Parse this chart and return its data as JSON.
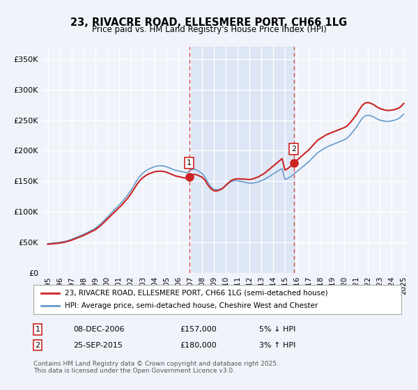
{
  "title": "23, RIVACRE ROAD, ELLESMERE PORT, CH66 1LG",
  "subtitle": "Price paid vs. HM Land Registry's House Price Index (HPI)",
  "ylabel": "",
  "background_color": "#f0f4fa",
  "plot_bg_color": "#f0f4fa",
  "grid_color": "#ffffff",
  "title_fontsize": 11,
  "subtitle_fontsize": 9,
  "legend_label_red": "23, RIVACRE ROAD, ELLESMERE PORT, CH66 1LG (semi-detached house)",
  "legend_label_blue": "HPI: Average price, semi-detached house, Cheshire West and Chester",
  "marker1_date_idx": 12,
  "marker1_label": "1",
  "marker1_value": 157000,
  "marker1_date_str": "08-DEC-2006",
  "marker1_pct": "5% ↓ HPI",
  "marker2_date_idx": 21,
  "marker2_label": "2",
  "marker2_value": 180000,
  "marker2_date_str": "25-SEP-2015",
  "marker2_pct": "3% ↑ HPI",
  "vline1_x": 2006.92,
  "vline2_x": 2015.73,
  "shade_color": "#ccd9f0",
  "footer": "Contains HM Land Registry data © Crown copyright and database right 2025.\nThis data is licensed under the Open Government Licence v3.0.",
  "hpi_years": [
    1995.0,
    1995.25,
    1995.5,
    1995.75,
    1996.0,
    1996.25,
    1996.5,
    1996.75,
    1997.0,
    1997.25,
    1997.5,
    1997.75,
    1998.0,
    1998.25,
    1998.5,
    1998.75,
    1999.0,
    1999.25,
    1999.5,
    1999.75,
    2000.0,
    2000.25,
    2000.5,
    2000.75,
    2001.0,
    2001.25,
    2001.5,
    2001.75,
    2002.0,
    2002.25,
    2002.5,
    2002.75,
    2003.0,
    2003.25,
    2003.5,
    2003.75,
    2004.0,
    2004.25,
    2004.5,
    2004.75,
    2005.0,
    2005.25,
    2005.5,
    2005.75,
    2006.0,
    2006.25,
    2006.5,
    2006.75,
    2007.0,
    2007.25,
    2007.5,
    2007.75,
    2008.0,
    2008.25,
    2008.5,
    2008.75,
    2009.0,
    2009.25,
    2009.5,
    2009.75,
    2010.0,
    2010.25,
    2010.5,
    2010.75,
    2011.0,
    2011.25,
    2011.5,
    2011.75,
    2012.0,
    2012.25,
    2012.5,
    2012.75,
    2013.0,
    2013.25,
    2013.5,
    2013.75,
    2014.0,
    2014.25,
    2014.5,
    2014.75,
    2015.0,
    2015.25,
    2015.5,
    2015.75,
    2016.0,
    2016.25,
    2016.5,
    2016.75,
    2017.0,
    2017.25,
    2017.5,
    2017.75,
    2018.0,
    2018.25,
    2018.5,
    2018.75,
    2019.0,
    2019.25,
    2019.5,
    2019.75,
    2020.0,
    2020.25,
    2020.5,
    2020.75,
    2021.0,
    2021.25,
    2021.5,
    2021.75,
    2022.0,
    2022.25,
    2022.5,
    2022.75,
    2023.0,
    2023.25,
    2023.5,
    2023.75,
    2024.0,
    2024.25,
    2024.5,
    2024.75,
    2025.0
  ],
  "hpi_values": [
    48000,
    48500,
    49000,
    49500,
    50000,
    51000,
    52000,
    53500,
    55000,
    57000,
    59000,
    61000,
    63000,
    65500,
    68000,
    70500,
    73000,
    77000,
    81000,
    86000,
    91000,
    96000,
    101000,
    106000,
    111000,
    116000,
    122000,
    128000,
    135000,
    143000,
    151000,
    158000,
    163000,
    167000,
    170000,
    172000,
    174000,
    175000,
    175500,
    175000,
    174000,
    172000,
    170000,
    168000,
    167000,
    166000,
    165000,
    164000,
    168000,
    170000,
    169000,
    166000,
    163000,
    157000,
    148000,
    141000,
    137000,
    136000,
    137000,
    139000,
    143000,
    147000,
    150000,
    151000,
    151000,
    150000,
    149000,
    148000,
    147000,
    147000,
    148000,
    149000,
    151000,
    153000,
    156000,
    159000,
    162000,
    165000,
    168000,
    171000,
    153000,
    155000,
    158000,
    162000,
    166000,
    170000,
    174000,
    178000,
    182000,
    187000,
    192000,
    197000,
    200000,
    203000,
    206000,
    208000,
    210000,
    212000,
    214000,
    216000,
    218000,
    221000,
    226000,
    232000,
    238000,
    246000,
    253000,
    257000,
    258000,
    257000,
    255000,
    252000,
    250000,
    249000,
    248000,
    248000,
    249000,
    250000,
    252000,
    255000,
    260000
  ],
  "red_years": [
    1995.5,
    2006.92,
    2015.73,
    2024.75
  ],
  "red_values": [
    48000,
    157000,
    180000,
    272000
  ],
  "xlim_min": 1994.5,
  "xlim_max": 2025.5,
  "ylim_min": 0,
  "ylim_max": 370000,
  "yticks": [
    0,
    50000,
    100000,
    150000,
    200000,
    250000,
    300000,
    350000
  ],
  "ytick_labels": [
    "£0",
    "£50K",
    "£100K",
    "£150K",
    "£200K",
    "£250K",
    "£300K",
    "£350K"
  ],
  "xticks": [
    1995,
    1996,
    1997,
    1998,
    1999,
    2000,
    2001,
    2002,
    2003,
    2004,
    2005,
    2006,
    2007,
    2008,
    2009,
    2010,
    2011,
    2012,
    2013,
    2014,
    2015,
    2016,
    2017,
    2018,
    2019,
    2020,
    2021,
    2022,
    2023,
    2024,
    2025
  ]
}
